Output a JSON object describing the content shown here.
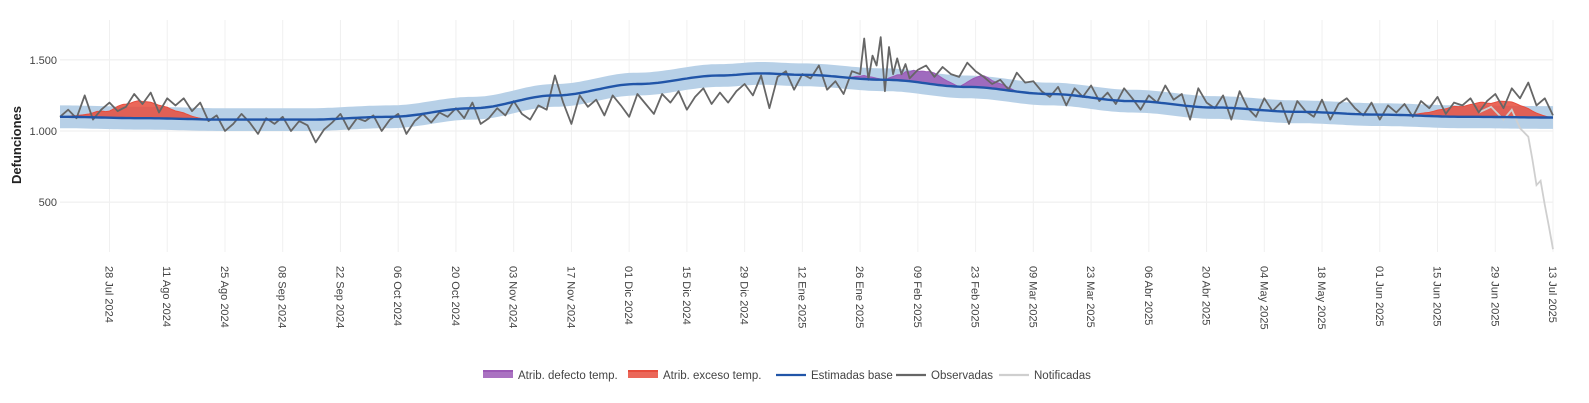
{
  "chart_data": {
    "type": "line",
    "title": "",
    "ylabel": "Defunciones",
    "xlabel": "",
    "ylim": [
      150,
      1780
    ],
    "xlim": [
      "2024-07-16",
      "2025-07-13"
    ],
    "grid": true,
    "yticks": [
      {
        "value": 500,
        "label": "500"
      },
      {
        "value": 1000,
        "label": "1.000"
      },
      {
        "value": 1500,
        "label": "1.500"
      }
    ],
    "xticks": [
      {
        "date": "2024-07-28",
        "label": "28 Jul 2024"
      },
      {
        "date": "2024-08-11",
        "label": "11 Ago 2024"
      },
      {
        "date": "2024-08-25",
        "label": "25 Ago 2024"
      },
      {
        "date": "2024-09-08",
        "label": "08 Sep 2024"
      },
      {
        "date": "2024-09-22",
        "label": "22 Sep 2024"
      },
      {
        "date": "2024-10-06",
        "label": "06 Oct 2024"
      },
      {
        "date": "2024-10-20",
        "label": "20 Oct 2024"
      },
      {
        "date": "2024-11-03",
        "label": "03 Nov 2024"
      },
      {
        "date": "2024-11-17",
        "label": "17 Nov 2024"
      },
      {
        "date": "2024-12-01",
        "label": "01 Dic 2024"
      },
      {
        "date": "2024-12-15",
        "label": "15 Dic 2024"
      },
      {
        "date": "2024-12-29",
        "label": "29 Dic 2024"
      },
      {
        "date": "2025-01-12",
        "label": "12 Ene 2025"
      },
      {
        "date": "2025-01-26",
        "label": "26 Ene 2025"
      },
      {
        "date": "2025-02-09",
        "label": "09 Feb 2025"
      },
      {
        "date": "2025-02-23",
        "label": "23 Feb 2025"
      },
      {
        "date": "2025-03-09",
        "label": "09 Mar 2025"
      },
      {
        "date": "2025-03-23",
        "label": "23 Mar 2025"
      },
      {
        "date": "2025-04-06",
        "label": "06 Abr 2025"
      },
      {
        "date": "2025-04-20",
        "label": "20 Abr 2025"
      },
      {
        "date": "2025-05-04",
        "label": "04 May 2025"
      },
      {
        "date": "2025-05-18",
        "label": "18 May 2025"
      },
      {
        "date": "2025-06-01",
        "label": "01 Jun 2025"
      },
      {
        "date": "2025-06-15",
        "label": "15 Jun 2025"
      },
      {
        "date": "2025-06-29",
        "label": "29 Jun 2025"
      },
      {
        "date": "2025-07-13",
        "label": "13 Jul 2025"
      }
    ],
    "start_date": "2024-07-16",
    "observed_start": "2024-07-16",
    "baseline_knots": [
      [
        0,
        1100
      ],
      [
        20,
        1090
      ],
      [
        40,
        1080
      ],
      [
        60,
        1080
      ],
      [
        80,
        1100
      ],
      [
        100,
        1160
      ],
      [
        120,
        1250
      ],
      [
        140,
        1330
      ],
      [
        160,
        1390
      ],
      [
        170,
        1405
      ],
      [
        180,
        1395
      ],
      [
        200,
        1360
      ],
      [
        220,
        1310
      ],
      [
        240,
        1260
      ],
      [
        260,
        1210
      ],
      [
        280,
        1165
      ],
      [
        300,
        1135
      ],
      [
        320,
        1115
      ],
      [
        340,
        1100
      ],
      [
        362,
        1095
      ]
    ],
    "band_halfwidth": 80,
    "observed_knots": [
      [
        0,
        1100
      ],
      [
        2,
        1150
      ],
      [
        4,
        1090
      ],
      [
        6,
        1250
      ],
      [
        8,
        1080
      ],
      [
        10,
        1150
      ],
      [
        12,
        1200
      ],
      [
        14,
        1140
      ],
      [
        16,
        1170
      ],
      [
        18,
        1260
      ],
      [
        20,
        1190
      ],
      [
        22,
        1270
      ],
      [
        24,
        1130
      ],
      [
        26,
        1230
      ],
      [
        28,
        1180
      ],
      [
        30,
        1230
      ],
      [
        32,
        1140
      ],
      [
        34,
        1200
      ],
      [
        36,
        1070
      ],
      [
        38,
        1110
      ],
      [
        40,
        1000
      ],
      [
        42,
        1050
      ],
      [
        44,
        1120
      ],
      [
        46,
        1060
      ],
      [
        48,
        980
      ],
      [
        50,
        1090
      ],
      [
        52,
        1050
      ],
      [
        54,
        1100
      ],
      [
        56,
        1000
      ],
      [
        58,
        1070
      ],
      [
        60,
        1040
      ],
      [
        62,
        920
      ],
      [
        64,
        1010
      ],
      [
        66,
        1060
      ],
      [
        68,
        1120
      ],
      [
        70,
        1010
      ],
      [
        72,
        1090
      ],
      [
        74,
        1070
      ],
      [
        76,
        1110
      ],
      [
        78,
        1000
      ],
      [
        80,
        1080
      ],
      [
        82,
        1120
      ],
      [
        84,
        980
      ],
      [
        86,
        1070
      ],
      [
        88,
        1120
      ],
      [
        90,
        1060
      ],
      [
        92,
        1130
      ],
      [
        94,
        1100
      ],
      [
        96,
        1160
      ],
      [
        98,
        1090
      ],
      [
        100,
        1200
      ],
      [
        102,
        1050
      ],
      [
        104,
        1090
      ],
      [
        106,
        1160
      ],
      [
        108,
        1110
      ],
      [
        110,
        1210
      ],
      [
        112,
        1120
      ],
      [
        114,
        1080
      ],
      [
        116,
        1180
      ],
      [
        118,
        1150
      ],
      [
        120,
        1390
      ],
      [
        122,
        1200
      ],
      [
        124,
        1050
      ],
      [
        126,
        1250
      ],
      [
        128,
        1170
      ],
      [
        130,
        1220
      ],
      [
        132,
        1110
      ],
      [
        134,
        1250
      ],
      [
        136,
        1180
      ],
      [
        138,
        1100
      ],
      [
        140,
        1260
      ],
      [
        142,
        1190
      ],
      [
        144,
        1120
      ],
      [
        146,
        1260
      ],
      [
        148,
        1200
      ],
      [
        150,
        1280
      ],
      [
        152,
        1150
      ],
      [
        154,
        1240
      ],
      [
        156,
        1300
      ],
      [
        158,
        1190
      ],
      [
        160,
        1270
      ],
      [
        162,
        1200
      ],
      [
        164,
        1280
      ],
      [
        166,
        1330
      ],
      [
        168,
        1250
      ],
      [
        170,
        1390
      ],
      [
        172,
        1160
      ],
      [
        174,
        1380
      ],
      [
        176,
        1420
      ],
      [
        178,
        1290
      ],
      [
        180,
        1400
      ],
      [
        182,
        1370
      ],
      [
        184,
        1460
      ],
      [
        186,
        1290
      ],
      [
        188,
        1350
      ],
      [
        190,
        1260
      ],
      [
        192,
        1420
      ],
      [
        194,
        1400
      ],
      [
        196,
        1360
      ],
      [
        198,
        1460
      ],
      [
        200,
        1280
      ],
      [
        202,
        1400
      ],
      [
        204,
        1400
      ],
      [
        206,
        1370
      ],
      [
        208,
        1430
      ],
      [
        210,
        1460
      ],
      [
        212,
        1380
      ],
      [
        214,
        1450
      ],
      [
        216,
        1400
      ],
      [
        218,
        1380
      ],
      [
        220,
        1480
      ],
      [
        222,
        1420
      ],
      [
        224,
        1380
      ],
      [
        226,
        1330
      ],
      [
        228,
        1360
      ],
      [
        230,
        1290
      ],
      [
        232,
        1410
      ],
      [
        234,
        1340
      ],
      [
        236,
        1350
      ],
      [
        238,
        1280
      ],
      [
        240,
        1240
      ],
      [
        242,
        1310
      ],
      [
        244,
        1180
      ],
      [
        246,
        1300
      ],
      [
        248,
        1240
      ],
      [
        250,
        1320
      ],
      [
        252,
        1210
      ],
      [
        254,
        1270
      ],
      [
        256,
        1190
      ],
      [
        258,
        1300
      ],
      [
        260,
        1230
      ],
      [
        262,
        1150
      ],
      [
        264,
        1250
      ],
      [
        266,
        1200
      ],
      [
        268,
        1320
      ],
      [
        270,
        1220
      ],
      [
        272,
        1260
      ],
      [
        274,
        1080
      ],
      [
        276,
        1300
      ],
      [
        278,
        1200
      ],
      [
        280,
        1160
      ],
      [
        282,
        1250
      ],
      [
        284,
        1080
      ],
      [
        286,
        1280
      ],
      [
        288,
        1160
      ],
      [
        290,
        1100
      ],
      [
        292,
        1230
      ],
      [
        294,
        1140
      ],
      [
        296,
        1200
      ],
      [
        298,
        1050
      ],
      [
        300,
        1210
      ],
      [
        302,
        1140
      ],
      [
        304,
        1100
      ],
      [
        306,
        1220
      ],
      [
        308,
        1080
      ],
      [
        310,
        1190
      ],
      [
        312,
        1230
      ],
      [
        314,
        1160
      ],
      [
        316,
        1110
      ],
      [
        318,
        1200
      ],
      [
        320,
        1080
      ],
      [
        322,
        1180
      ],
      [
        324,
        1130
      ],
      [
        326,
        1190
      ],
      [
        328,
        1100
      ],
      [
        330,
        1210
      ],
      [
        332,
        1160
      ],
      [
        334,
        1240
      ],
      [
        336,
        1120
      ],
      [
        338,
        1200
      ],
      [
        340,
        1180
      ],
      [
        342,
        1230
      ],
      [
        344,
        1130
      ],
      [
        346,
        1210
      ],
      [
        348,
        1260
      ],
      [
        350,
        1160
      ],
      [
        352,
        1300
      ],
      [
        354,
        1230
      ],
      [
        356,
        1340
      ],
      [
        358,
        1180
      ],
      [
        360,
        1230
      ],
      [
        362,
        1110
      ]
    ],
    "observed_spikes": [
      [
        195,
        1650
      ],
      [
        197,
        1530
      ],
      [
        199,
        1660
      ],
      [
        201,
        1590
      ],
      [
        203,
        1510
      ],
      [
        205,
        1470
      ]
    ],
    "notified_knots": [
      [
        344,
        1130
      ],
      [
        347,
        1170
      ],
      [
        350,
        1080
      ],
      [
        352,
        1150
      ],
      [
        354,
        1020
      ],
      [
        356,
        960
      ],
      [
        357,
        800
      ],
      [
        358,
        620
      ],
      [
        359,
        650
      ],
      [
        360,
        480
      ],
      [
        361,
        330
      ],
      [
        362,
        170
      ]
    ],
    "defect_regions": [
      [
        155,
        200
      ],
      [
        200,
        218
      ],
      [
        218,
        232
      ]
    ],
    "excess_regions": [
      [
        0,
        36
      ],
      [
        326,
        362
      ]
    ],
    "series": [
      {
        "name": "Atrib. defecto temp.",
        "color": "#9b59b6",
        "type": "area"
      },
      {
        "name": "Atrib. exceso temp.",
        "color": "#e74c3c",
        "type": "area"
      },
      {
        "name": "Estimadas base",
        "color": "#2155a8",
        "type": "line"
      },
      {
        "name": "Observadas",
        "color": "#666666",
        "type": "line"
      },
      {
        "name": "Notificadas",
        "color": "#cfcfcf",
        "type": "line"
      }
    ],
    "band_color": "#b3cde6",
    "legend_position": "bottom-center"
  }
}
